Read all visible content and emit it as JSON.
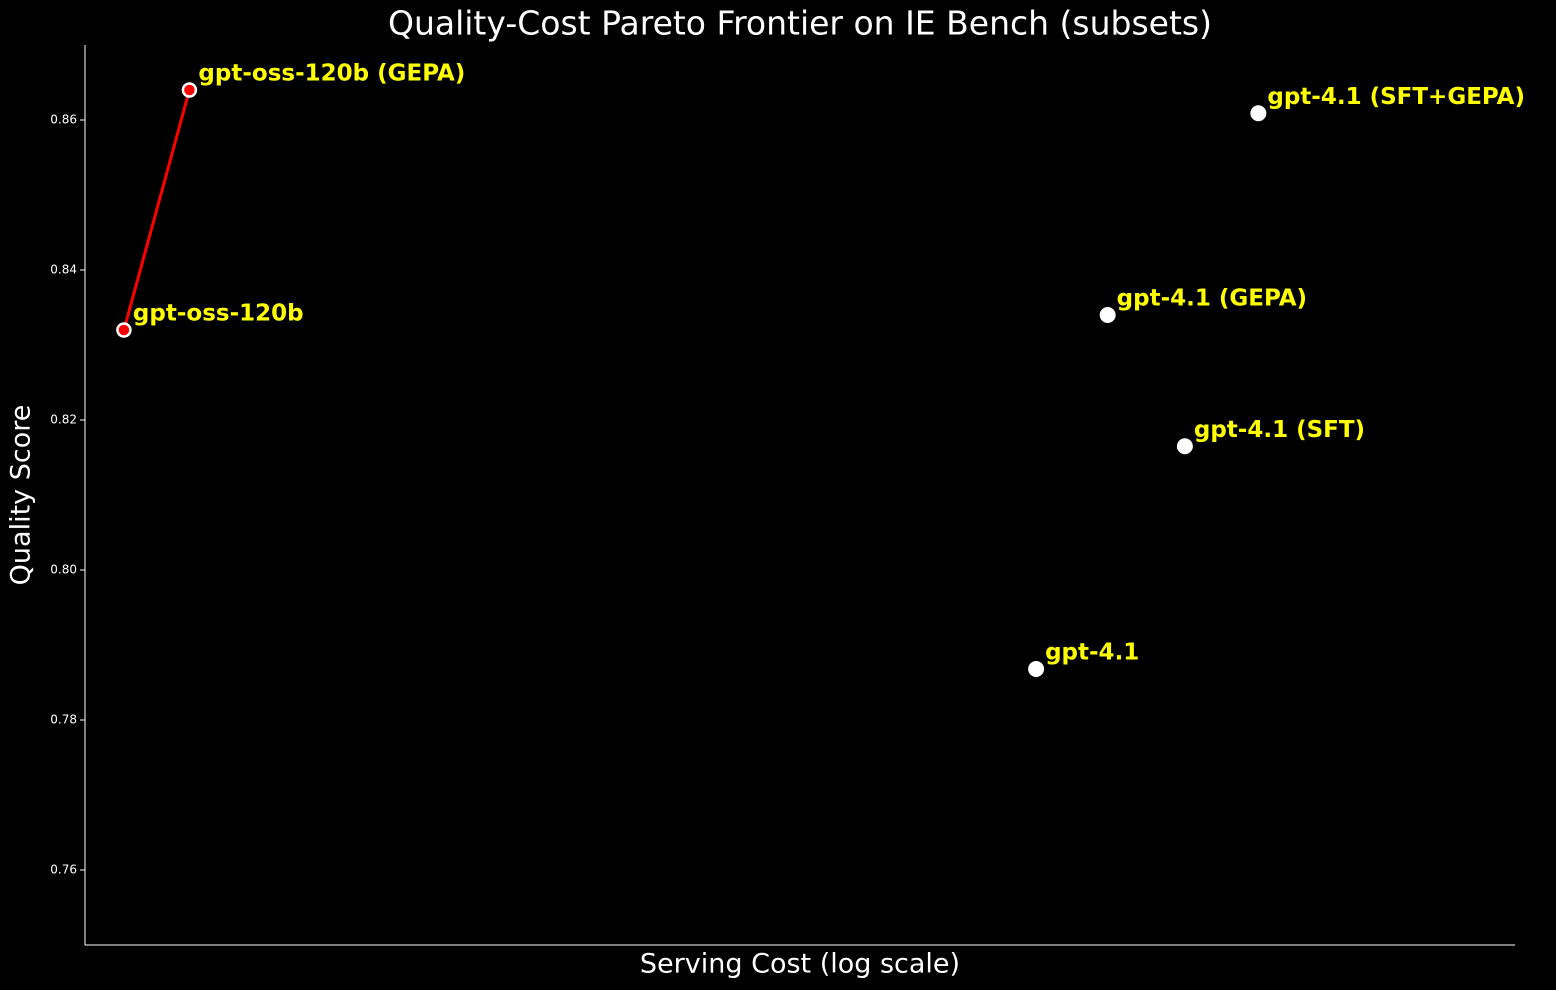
{
  "chart_data": {
    "type": "scatter",
    "title": "Quality-Cost Pareto Frontier on IE Bench (subsets)",
    "x_label": "Serving Cost (log scale)",
    "y_label": "Quality Score",
    "labels": [
      "gpt-oss-120b",
      "gpt-oss-120b (GEPA)",
      "gpt-4.1",
      "gpt-4.1 (GEPA)",
      "gpt-4.1 (SFT)",
      "gpt-4.1 (SFT+GEPA)"
    ],
    "x": [
      1,
      1.24,
      20,
      25.3,
      32.6,
      41.5
    ],
    "values": [
      0.832,
      0.864,
      0.7868,
      0.834,
      0.8165,
      0.8609
    ],
    "on_frontier": [
      true,
      true,
      false,
      false,
      false,
      false
    ],
    "color": "#ffffff",
    "frontier_color": "#ff0000",
    "label_color": "#ffff00",
    "xscale": "log",
    "xlim": [
      0.88,
      96.4
    ],
    "ylim": [
      0.75,
      0.87
    ],
    "yticks": [
      0.76,
      0.78,
      {
        "value": 0.8,
        "label": "0.80"
      },
      0.82,
      0.84,
      0.86
    ],
    "grid": false
  }
}
